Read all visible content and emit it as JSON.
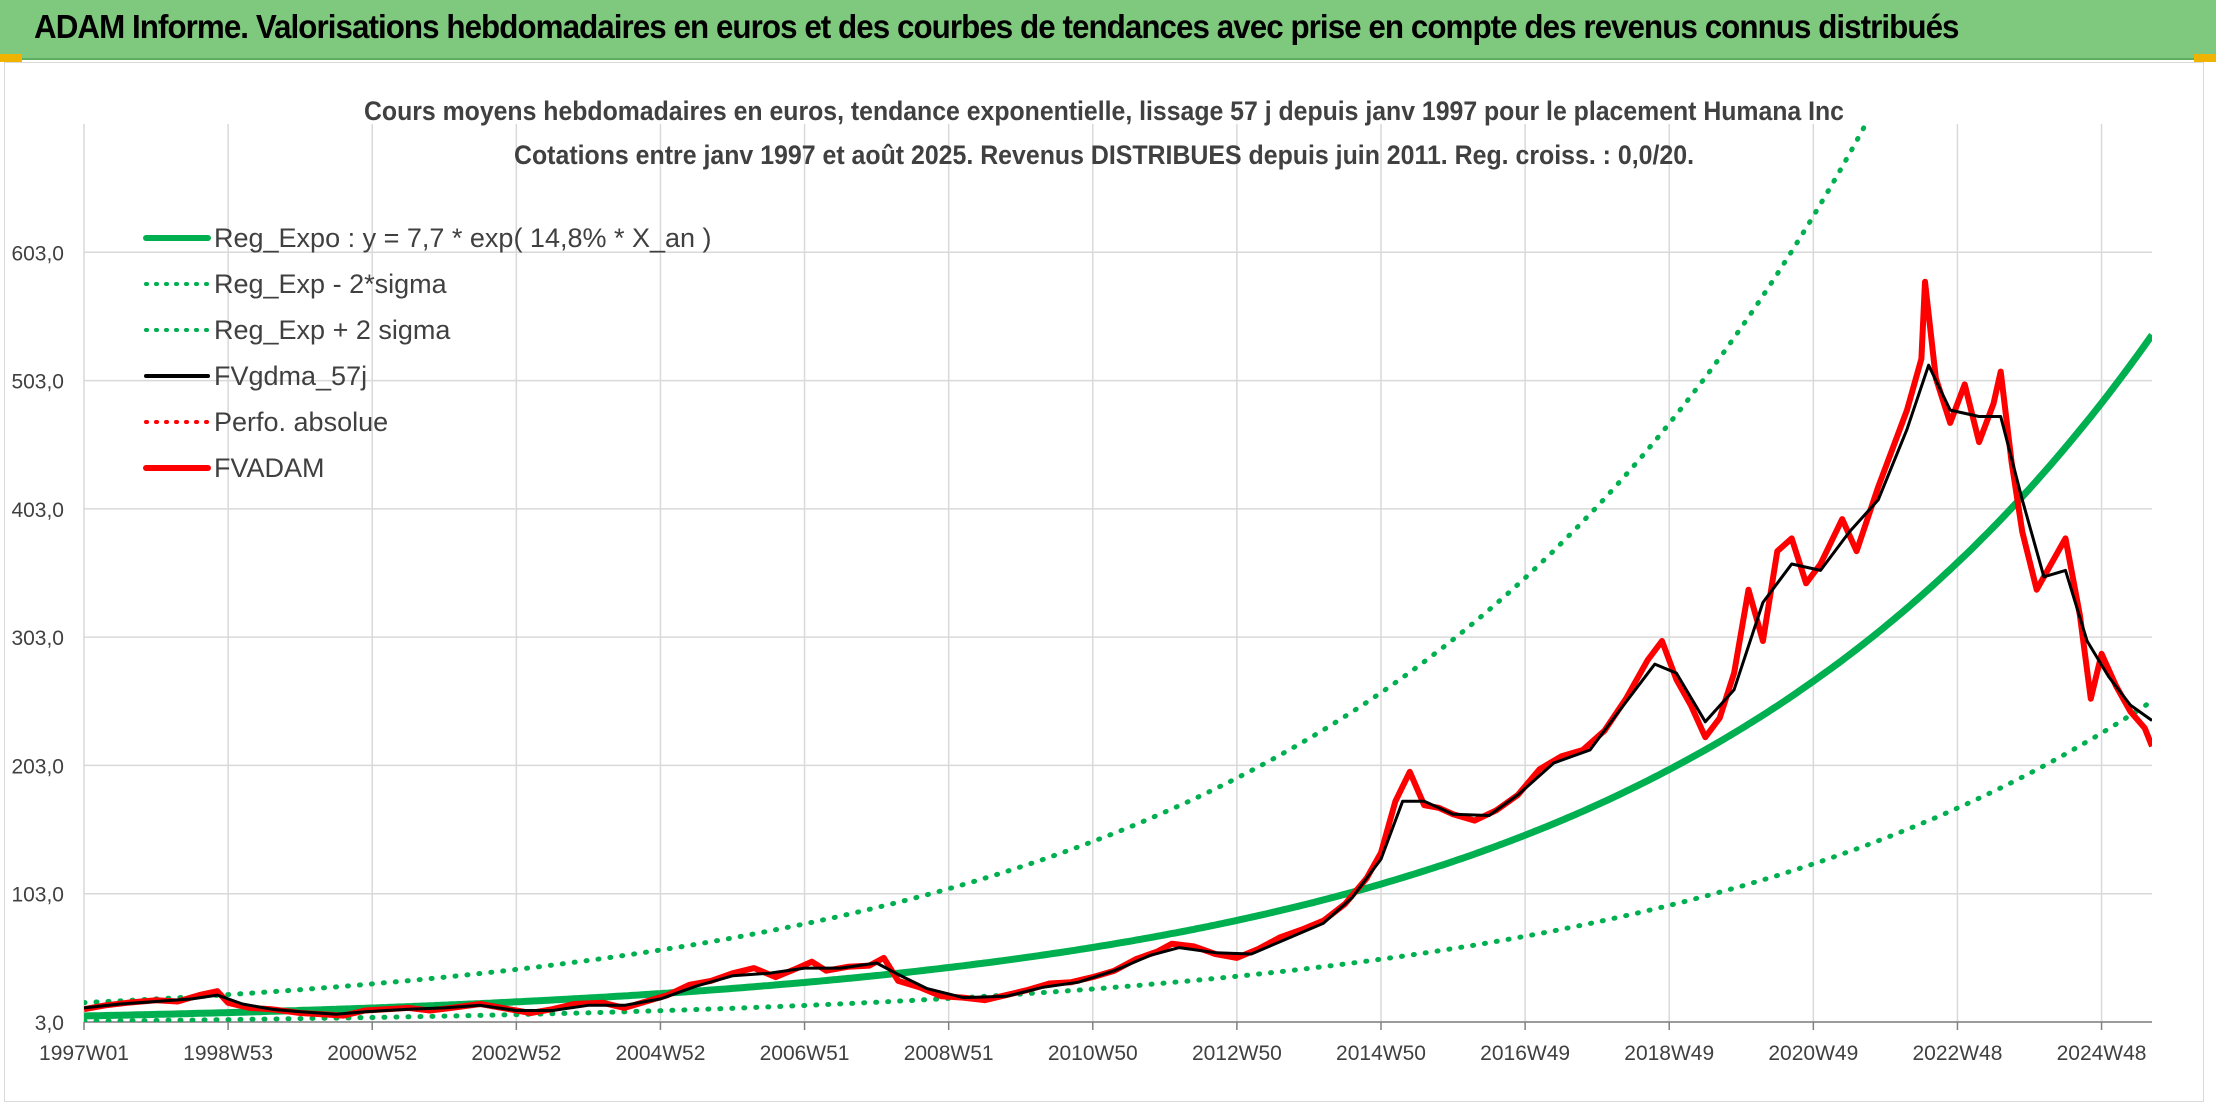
{
  "banner": {
    "title": "ADAM Informe. Valorisations hebdomadaires en euros et des courbes de tendances avec prise en compte des revenus connus distribués"
  },
  "colors": {
    "banner_bg": "#7fc97f",
    "reg_green": "#00b050",
    "smooth_black": "#000000",
    "fvadam_red": "#ff0000",
    "grid": "#d9d9d9",
    "text": "#404040"
  },
  "chart_data": {
    "type": "line",
    "title": "Cours moyens hebdomadaires en euros, tendance exponentielle, lissage 57 j depuis janv 1997 pour le placement Humana Inc",
    "subtitle": "Cotations entre janv 1997 et août 2025. Revenus DISTRIBUES depuis juin 2011. Reg. croiss. : 0,0/20.",
    "xlabel": "",
    "ylabel": "",
    "x_ticks": [
      "1997W01",
      "1998W53",
      "2000W52",
      "2002W52",
      "2004W52",
      "2006W51",
      "2008W51",
      "2010W50",
      "2012W50",
      "2014W50",
      "2016W49",
      "2018W49",
      "2020W49",
      "2022W48",
      "2024W48"
    ],
    "x_tick_years": [
      1997.0,
      1999.0,
      2001.0,
      2003.0,
      2005.0,
      2007.0,
      2009.0,
      2011.0,
      2013.0,
      2015.0,
      2017.0,
      2019.0,
      2021.0,
      2023.0,
      2025.0
    ],
    "xlim": [
      1997.0,
      2025.7
    ],
    "y_ticks": [
      "3,0",
      "103,0",
      "203,0",
      "303,0",
      "403,0",
      "503,0",
      "603,0"
    ],
    "y_tick_values": [
      3,
      103,
      203,
      303,
      403,
      503,
      603
    ],
    "ylim": [
      3,
      703
    ],
    "grid": true,
    "legend_position": "top-left",
    "legend": [
      {
        "label": "Reg_Expo : y = 7,7 * exp( 14,8% *  X_an )",
        "style": "solid-thick",
        "color": "#00b050"
      },
      {
        "label": "Reg_Exp - 2*sigma",
        "style": "dotted",
        "color": "#00b050"
      },
      {
        "label": "Reg_Exp + 2 sigma",
        "style": "dotted",
        "color": "#00b050"
      },
      {
        "label": "FVgdma_57j",
        "style": "solid",
        "color": "#000000"
      },
      {
        "label": "Perfo. absolue",
        "style": "dotted",
        "color": "#ff0000"
      },
      {
        "label": "FVADAM",
        "style": "solid-thick",
        "color": "#ff0000"
      }
    ],
    "trend": {
      "a": 7.7,
      "rate": 0.148,
      "start_year": 1997.0,
      "lower_factor": 0.47,
      "upper_factor": 2.35
    },
    "series": [
      {
        "name": "FVADAM",
        "points": [
          [
            1997.0,
            13
          ],
          [
            1997.3,
            16
          ],
          [
            1997.6,
            18
          ],
          [
            1998.0,
            20
          ],
          [
            1998.3,
            19
          ],
          [
            1998.6,
            24
          ],
          [
            1998.85,
            27
          ],
          [
            1999.0,
            18
          ],
          [
            1999.3,
            14
          ],
          [
            1999.6,
            13
          ],
          [
            2000.0,
            10
          ],
          [
            2000.3,
            9
          ],
          [
            2000.6,
            8
          ],
          [
            2000.9,
            12
          ],
          [
            2001.2,
            13
          ],
          [
            2001.5,
            14
          ],
          [
            2001.8,
            12
          ],
          [
            2002.1,
            14
          ],
          [
            2002.5,
            17
          ],
          [
            2002.9,
            13
          ],
          [
            2003.2,
            10
          ],
          [
            2003.5,
            13
          ],
          [
            2003.8,
            17
          ],
          [
            2004.2,
            18
          ],
          [
            2004.5,
            14
          ],
          [
            2004.8,
            19
          ],
          [
            2005.1,
            24
          ],
          [
            2005.4,
            32
          ],
          [
            2005.7,
            35
          ],
          [
            2006.0,
            41
          ],
          [
            2006.3,
            45
          ],
          [
            2006.6,
            38
          ],
          [
            2006.9,
            45
          ],
          [
            2007.1,
            50
          ],
          [
            2007.3,
            43
          ],
          [
            2007.6,
            46
          ],
          [
            2007.9,
            47
          ],
          [
            2008.1,
            53
          ],
          [
            2008.3,
            35
          ],
          [
            2008.6,
            30
          ],
          [
            2008.9,
            23
          ],
          [
            2009.2,
            22
          ],
          [
            2009.5,
            20
          ],
          [
            2009.8,
            24
          ],
          [
            2010.1,
            28
          ],
          [
            2010.4,
            33
          ],
          [
            2010.7,
            34
          ],
          [
            2011.0,
            38
          ],
          [
            2011.3,
            43
          ],
          [
            2011.6,
            52
          ],
          [
            2011.9,
            58
          ],
          [
            2012.1,
            64
          ],
          [
            2012.4,
            62
          ],
          [
            2012.7,
            56
          ],
          [
            2013.0,
            53
          ],
          [
            2013.3,
            60
          ],
          [
            2013.6,
            69
          ],
          [
            2013.9,
            75
          ],
          [
            2014.2,
            82
          ],
          [
            2014.5,
            95
          ],
          [
            2014.8,
            115
          ],
          [
            2015.0,
            135
          ],
          [
            2015.2,
            175
          ],
          [
            2015.4,
            198
          ],
          [
            2015.6,
            172
          ],
          [
            2015.8,
            170
          ],
          [
            2016.0,
            165
          ],
          [
            2016.3,
            160
          ],
          [
            2016.6,
            168
          ],
          [
            2016.9,
            180
          ],
          [
            2017.2,
            200
          ],
          [
            2017.5,
            210
          ],
          [
            2017.8,
            215
          ],
          [
            2018.1,
            230
          ],
          [
            2018.4,
            255
          ],
          [
            2018.7,
            285
          ],
          [
            2018.9,
            300
          ],
          [
            2019.1,
            270
          ],
          [
            2019.3,
            250
          ],
          [
            2019.5,
            225
          ],
          [
            2019.7,
            240
          ],
          [
            2019.9,
            275
          ],
          [
            2020.1,
            340
          ],
          [
            2020.3,
            300
          ],
          [
            2020.5,
            370
          ],
          [
            2020.7,
            380
          ],
          [
            2020.9,
            345
          ],
          [
            2021.1,
            360
          ],
          [
            2021.4,
            395
          ],
          [
            2021.6,
            370
          ],
          [
            2021.9,
            420
          ],
          [
            2022.1,
            450
          ],
          [
            2022.3,
            480
          ],
          [
            2022.5,
            520
          ],
          [
            2022.55,
            580
          ],
          [
            2022.7,
            505
          ],
          [
            2022.9,
            470
          ],
          [
            2023.1,
            500
          ],
          [
            2023.3,
            455
          ],
          [
            2023.5,
            485
          ],
          [
            2023.6,
            510
          ],
          [
            2023.75,
            440
          ],
          [
            2023.9,
            385
          ],
          [
            2024.1,
            340
          ],
          [
            2024.3,
            360
          ],
          [
            2024.5,
            380
          ],
          [
            2024.7,
            320
          ],
          [
            2024.85,
            255
          ],
          [
            2025.0,
            290
          ],
          [
            2025.2,
            265
          ],
          [
            2025.4,
            245
          ],
          [
            2025.6,
            232
          ],
          [
            2025.7,
            218
          ]
        ]
      },
      {
        "name": "FVgdma_57j",
        "points": [
          [
            1997.0,
            14
          ],
          [
            1997.5,
            17
          ],
          [
            1998.0,
            19
          ],
          [
            1998.5,
            21
          ],
          [
            1998.85,
            24
          ],
          [
            1999.2,
            17
          ],
          [
            1999.6,
            13
          ],
          [
            2000.0,
            11
          ],
          [
            2000.5,
            9
          ],
          [
            2000.9,
            11
          ],
          [
            2001.5,
            13
          ],
          [
            2002.0,
            14
          ],
          [
            2002.5,
            16
          ],
          [
            2003.0,
            12
          ],
          [
            2003.5,
            12
          ],
          [
            2004.0,
            16
          ],
          [
            2004.5,
            16
          ],
          [
            2005.0,
            21
          ],
          [
            2005.5,
            31
          ],
          [
            2006.0,
            39
          ],
          [
            2006.5,
            41
          ],
          [
            2007.0,
            45
          ],
          [
            2007.5,
            45
          ],
          [
            2008.0,
            49
          ],
          [
            2008.3,
            40
          ],
          [
            2008.7,
            29
          ],
          [
            2009.2,
            22
          ],
          [
            2009.8,
            23
          ],
          [
            2010.3,
            30
          ],
          [
            2010.8,
            34
          ],
          [
            2011.3,
            43
          ],
          [
            2011.8,
            55
          ],
          [
            2012.2,
            61
          ],
          [
            2012.7,
            57
          ],
          [
            2013.2,
            56
          ],
          [
            2013.7,
            68
          ],
          [
            2014.2,
            80
          ],
          [
            2014.6,
            100
          ],
          [
            2015.0,
            130
          ],
          [
            2015.3,
            175
          ],
          [
            2015.6,
            175
          ],
          [
            2016.0,
            165
          ],
          [
            2016.5,
            164
          ],
          [
            2016.9,
            180
          ],
          [
            2017.4,
            205
          ],
          [
            2017.9,
            215
          ],
          [
            2018.3,
            245
          ],
          [
            2018.8,
            282
          ],
          [
            2019.1,
            275
          ],
          [
            2019.5,
            237
          ],
          [
            2019.9,
            262
          ],
          [
            2020.3,
            330
          ],
          [
            2020.7,
            360
          ],
          [
            2021.1,
            355
          ],
          [
            2021.5,
            385
          ],
          [
            2021.9,
            410
          ],
          [
            2022.3,
            465
          ],
          [
            2022.6,
            515
          ],
          [
            2022.9,
            480
          ],
          [
            2023.3,
            475
          ],
          [
            2023.6,
            475
          ],
          [
            2023.9,
            410
          ],
          [
            2024.2,
            350
          ],
          [
            2024.5,
            355
          ],
          [
            2024.8,
            300
          ],
          [
            2025.1,
            272
          ],
          [
            2025.4,
            250
          ],
          [
            2025.7,
            238
          ]
        ]
      }
    ]
  }
}
